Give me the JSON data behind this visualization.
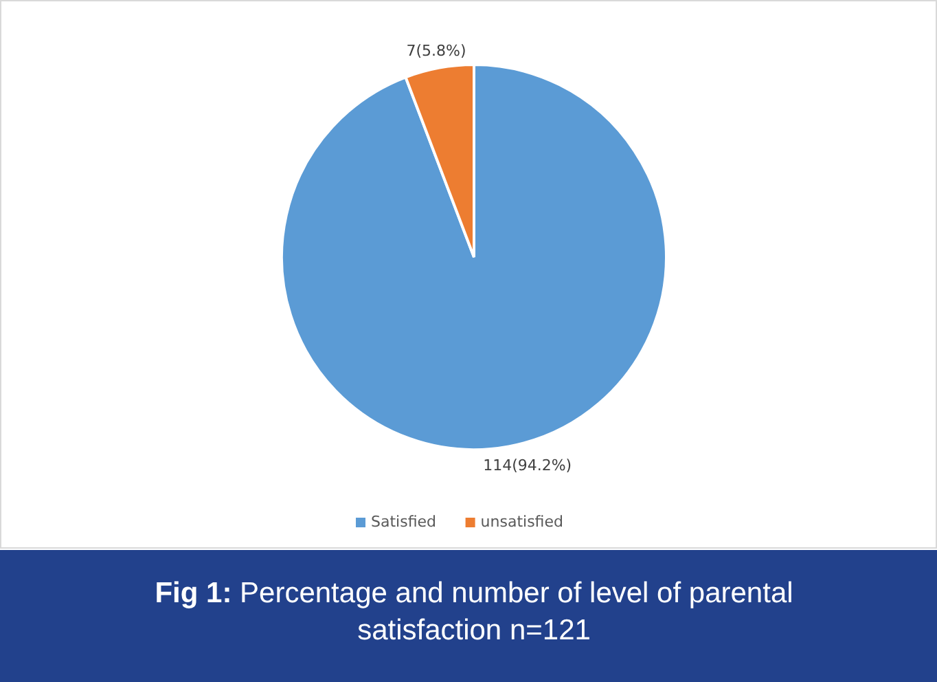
{
  "chart_data": {
    "type": "pie",
    "title": "Fig 1: Percentage and number of level of parental satisfaction n=121",
    "categories": [
      "Satisfied",
      "unsatisfied"
    ],
    "values": [
      114,
      7
    ],
    "colors": [
      "#5b9bd5",
      "#ed7d31"
    ],
    "value_labels": [
      "114(94.2%)",
      "7(5.8%)"
    ],
    "legend": "bottom"
  }
}
